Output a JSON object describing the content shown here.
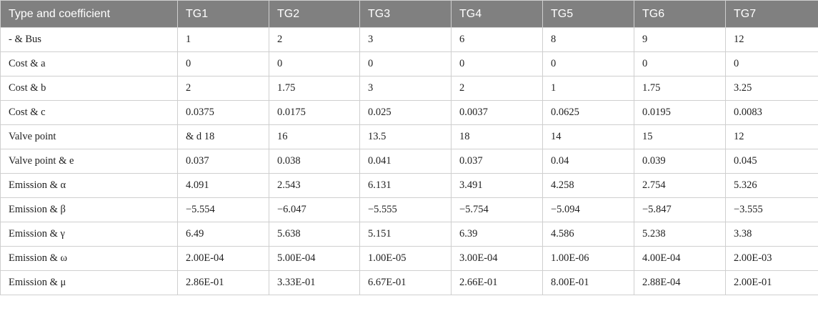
{
  "table": {
    "header": [
      "Type and coefficient",
      "TG1",
      "TG2",
      "TG3",
      "TG4",
      "TG5",
      "TG6",
      "TG7"
    ],
    "rows": [
      [
        "- & Bus",
        "1",
        "2",
        "3",
        "6",
        "8",
        "9",
        "12"
      ],
      [
        "Cost & a",
        "0",
        "0",
        "0",
        "0",
        "0",
        "0",
        "0"
      ],
      [
        "Cost & b",
        "2",
        "1.75",
        "3",
        "2",
        "1",
        "1.75",
        "3.25"
      ],
      [
        "Cost & c",
        "0.0375",
        "0.0175",
        "0.025",
        "0.0037",
        "0.0625",
        "0.0195",
        "0.0083"
      ],
      [
        "Valve point",
        "& d 18",
        "16",
        "13.5",
        "18",
        "14",
        "15",
        "12"
      ],
      [
        "Valve point & e",
        "0.037",
        "0.038",
        "0.041",
        "0.037",
        "0.04",
        "0.039",
        "0.045"
      ],
      [
        "Emission & α",
        "4.091",
        "2.543",
        "6.131",
        "3.491",
        "4.258",
        "2.754",
        "5.326"
      ],
      [
        "Emission & β",
        "−5.554",
        "−6.047",
        "−5.555",
        "−5.754",
        "−5.094",
        "−5.847",
        "−3.555"
      ],
      [
        "Emission & γ",
        "6.49",
        "5.638",
        "5.151",
        "6.39",
        "4.586",
        "5.238",
        "3.38"
      ],
      [
        "Emission & ω",
        "2.00E-04",
        "5.00E-04",
        "1.00E-05",
        "3.00E-04",
        "1.00E-06",
        "4.00E-04",
        "2.00E-03"
      ],
      [
        "Emission & μ",
        "2.86E-01",
        "3.33E-01",
        "6.67E-01",
        "2.66E-01",
        "8.00E-01",
        "2.88E-04",
        "2.00E-01"
      ]
    ]
  }
}
